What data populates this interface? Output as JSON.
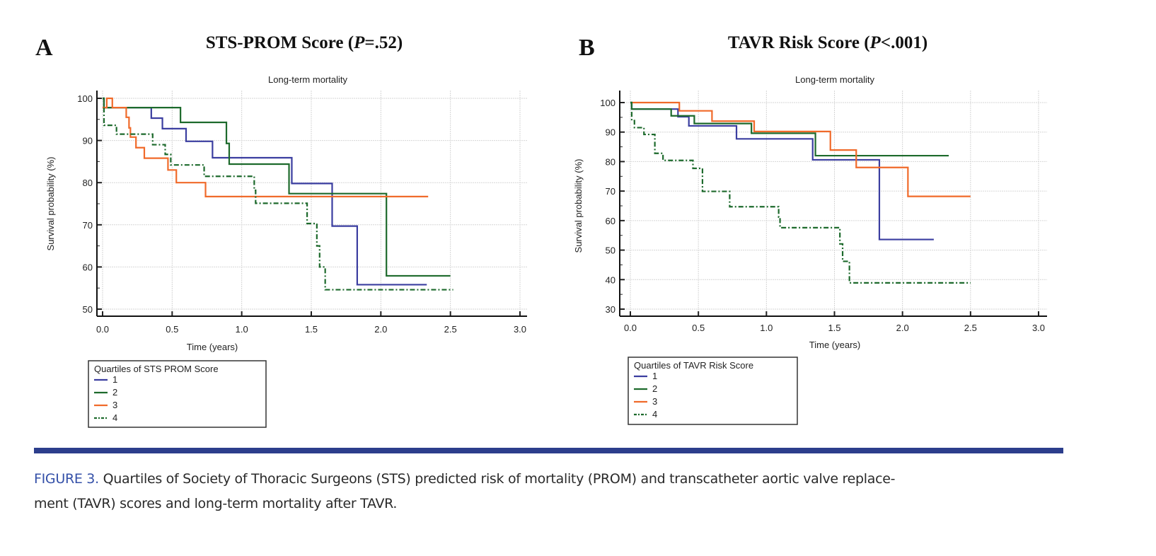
{
  "colors": {
    "q1": "#3b3ea0",
    "q2": "#1d6a2c",
    "q3": "#f06a2a",
    "q4": "#1d6a2c",
    "rule": "#2c3e8c",
    "caption_label": "#3450a8"
  },
  "chart_data": [
    {
      "type": "line",
      "step": true,
      "panel_letter": "A",
      "title_prefix": "STS-PROM Score (",
      "title_p": "P",
      "title_suffix": "=.52)",
      "subtitle": "Long-term mortality",
      "xlabel": "Time (years)",
      "ylabel": "Survival probability (%)",
      "xlim": [
        0,
        3
      ],
      "ylim": [
        50,
        100
      ],
      "xticks": [
        "0.0",
        "0.5",
        "1.0",
        "1.5",
        "2.0",
        "2.5",
        "3.0"
      ],
      "yticks": [
        "50",
        "60",
        "70",
        "80",
        "90",
        "100"
      ],
      "grid": true,
      "legend_title": "Quartiles of STS PROM Score",
      "legend_position": "bottom-left",
      "series": [
        {
          "name": "1",
          "style": "solid",
          "color_key": "q1",
          "points": [
            [
              0,
              100
            ],
            [
              0.01,
              97.8
            ],
            [
              0.35,
              95.3
            ],
            [
              0.43,
              92.8
            ],
            [
              0.6,
              89.8
            ],
            [
              0.79,
              85.9
            ],
            [
              1.36,
              79.8
            ],
            [
              1.65,
              69.7
            ],
            [
              1.83,
              55.8
            ],
            [
              2.33,
              55.8
            ]
          ]
        },
        {
          "name": "2",
          "style": "solid",
          "color_key": "q2",
          "points": [
            [
              0,
              100
            ],
            [
              0.01,
              97.8
            ],
            [
              0.56,
              94.3
            ],
            [
              0.89,
              89.3
            ],
            [
              0.91,
              84.4
            ],
            [
              1.34,
              77.4
            ],
            [
              2.04,
              57.9
            ],
            [
              2.5,
              57.9
            ]
          ]
        },
        {
          "name": "3",
          "style": "solid",
          "color_key": "q3",
          "points": [
            [
              0,
              97.8
            ],
            [
              0.03,
              100
            ],
            [
              0.07,
              97.8
            ],
            [
              0.17,
              95.5
            ],
            [
              0.19,
              93.0
            ],
            [
              0.2,
              90.8
            ],
            [
              0.24,
              88.3
            ],
            [
              0.3,
              85.8
            ],
            [
              0.47,
              83.0
            ],
            [
              0.53,
              80.0
            ],
            [
              0.74,
              76.7
            ],
            [
              2.34,
              76.7
            ]
          ]
        },
        {
          "name": "4",
          "style": "dashdot",
          "color_key": "q4",
          "points": [
            [
              0,
              100
            ],
            [
              0.01,
              93.6
            ],
            [
              0.1,
              91.5
            ],
            [
              0.36,
              89.0
            ],
            [
              0.45,
              86.7
            ],
            [
              0.49,
              84.2
            ],
            [
              0.73,
              81.5
            ],
            [
              1.09,
              78.2
            ],
            [
              1.1,
              75.1
            ],
            [
              1.47,
              70.3
            ],
            [
              1.54,
              65.0
            ],
            [
              1.56,
              60.0
            ],
            [
              1.6,
              54.6
            ],
            [
              2.52,
              54.6
            ]
          ]
        }
      ]
    },
    {
      "type": "line",
      "step": true,
      "panel_letter": "B",
      "title_prefix": "TAVR Risk Score (",
      "title_p": "P",
      "title_suffix": "<.001)",
      "subtitle": "Long-term mortality",
      "xlabel": "Time (years)",
      "ylabel": "Survival probability (%)",
      "xlim": [
        0,
        3
      ],
      "ylim": [
        30,
        100
      ],
      "xticks": [
        "0.0",
        "0.5",
        "1.0",
        "1.5",
        "2.0",
        "2.5",
        "3.0"
      ],
      "yticks": [
        "30",
        "40",
        "50",
        "60",
        "70",
        "80",
        "90",
        "100"
      ],
      "grid": true,
      "legend_title": "Quartiles of TAVR Risk Score",
      "legend_position": "bottom-left",
      "series": [
        {
          "name": "1",
          "style": "solid",
          "color_key": "q1",
          "points": [
            [
              0,
              100
            ],
            [
              0.01,
              97.8
            ],
            [
              0.35,
              95.2
            ],
            [
              0.43,
              92.1
            ],
            [
              0.78,
              87.7
            ],
            [
              1.34,
              80.6
            ],
            [
              1.83,
              53.6
            ],
            [
              2.23,
              53.6
            ]
          ]
        },
        {
          "name": "2",
          "style": "solid",
          "color_key": "q2",
          "points": [
            [
              0,
              100
            ],
            [
              0.01,
              97.8
            ],
            [
              0.3,
              95.5
            ],
            [
              0.47,
              92.9
            ],
            [
              0.89,
              89.6
            ],
            [
              1.36,
              82.0
            ],
            [
              2.34,
              82.0
            ]
          ]
        },
        {
          "name": "3",
          "style": "solid",
          "color_key": "q3",
          "points": [
            [
              0,
              100
            ],
            [
              0.36,
              97.2
            ],
            [
              0.6,
              93.7
            ],
            [
              0.91,
              90.2
            ],
            [
              1.47,
              83.9
            ],
            [
              1.66,
              78.0
            ],
            [
              2.04,
              68.2
            ],
            [
              2.5,
              68.2
            ]
          ]
        },
        {
          "name": "4",
          "style": "dashdot",
          "color_key": "q4",
          "points": [
            [
              0,
              100
            ],
            [
              0.01,
              93.9
            ],
            [
              0.03,
              91.5
            ],
            [
              0.1,
              89.2
            ],
            [
              0.18,
              82.8
            ],
            [
              0.24,
              80.4
            ],
            [
              0.46,
              77.7
            ],
            [
              0.53,
              69.9
            ],
            [
              0.73,
              64.7
            ],
            [
              1.09,
              61.2
            ],
            [
              1.1,
              57.6
            ],
            [
              1.54,
              52.1
            ],
            [
              1.56,
              46.2
            ],
            [
              1.61,
              38.9
            ],
            [
              2.5,
              38.9
            ]
          ]
        }
      ]
    }
  ],
  "caption": {
    "label": "FIGURE 3.",
    "line1": " Quartiles of Society of Thoracic Surgeons (STS) predicted risk of mortality (PROM) and transcatheter aortic valve replace-",
    "line2": "ment (TAVR) scores and long-term mortality after TAVR."
  }
}
